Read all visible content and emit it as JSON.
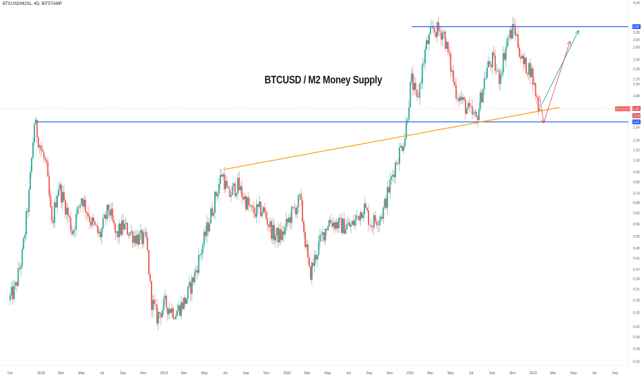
{
  "header": {
    "symbol_line": "BTCUSD/M2SL, 4D, BITSTAMP"
  },
  "chart_data": {
    "type": "candlestick",
    "title": "BTCUSD / M2 Money Supply",
    "scale": "log",
    "ylim": [
      0.165,
      4.2
    ],
    "y_ticks": [
      "4.20",
      "3.40",
      "3.20",
      "3.00",
      "2.80",
      "2.50",
      "2.30",
      "2.10",
      "2.00",
      "1.80",
      "1.60",
      "1.52",
      "1.42",
      "1.35",
      "1.20",
      "1.10",
      "1.00",
      "0.90",
      "0.82",
      "0.74",
      "0.68",
      "0.62",
      "0.56",
      "0.50",
      "0.45",
      "0.41",
      "0.37",
      "0.34",
      "0.31",
      "0.28",
      "0.25",
      "0.22",
      "0.20",
      "0.18",
      "0.16"
    ],
    "x_ticks": [
      "Oct",
      "2018",
      "Mar",
      "May",
      "Jul",
      "Sep",
      "Nov",
      "2019",
      "Mar",
      "May",
      "Jul",
      "Sep",
      "Nov",
      "2020",
      "Mar",
      "May",
      "Jul",
      "Sep",
      "Nov",
      "2021",
      "Mar",
      "May",
      "Jul",
      "Sep",
      "Nov",
      "2022",
      "Mar",
      "May",
      "Jul",
      "Sep"
    ],
    "price_path": [
      [
        "2017-10-01",
        0.28
      ],
      [
        "2017-10-20",
        0.31
      ],
      [
        "2017-11-10",
        0.42
      ],
      [
        "2017-12-01",
        0.75
      ],
      [
        "2017-12-16",
        1.42
      ],
      [
        "2018-01-05",
        1.1
      ],
      [
        "2018-01-20",
        0.95
      ],
      [
        "2018-02-06",
        0.55
      ],
      [
        "2018-02-25",
        0.8
      ],
      [
        "2018-03-20",
        0.65
      ],
      [
        "2018-04-08",
        0.52
      ],
      [
        "2018-05-05",
        0.72
      ],
      [
        "2018-06-01",
        0.58
      ],
      [
        "2018-06-28",
        0.5
      ],
      [
        "2018-07-25",
        0.65
      ],
      [
        "2018-08-15",
        0.5
      ],
      [
        "2018-09-05",
        0.55
      ],
      [
        "2018-10-10",
        0.5
      ],
      [
        "2018-11-14",
        0.48
      ],
      [
        "2018-11-28",
        0.28
      ],
      [
        "2018-12-15",
        0.24
      ],
      [
        "2019-01-08",
        0.27
      ],
      [
        "2019-02-08",
        0.25
      ],
      [
        "2019-03-10",
        0.28
      ],
      [
        "2019-04-05",
        0.35
      ],
      [
        "2019-05-15",
        0.55
      ],
      [
        "2019-06-26",
        0.9
      ],
      [
        "2019-07-15",
        0.72
      ],
      [
        "2019-08-10",
        0.8
      ],
      [
        "2019-09-24",
        0.62
      ],
      [
        "2019-10-25",
        0.64
      ],
      [
        "2019-11-25",
        0.51
      ],
      [
        "2019-12-20",
        0.5
      ],
      [
        "2020-01-15",
        0.6
      ],
      [
        "2020-02-13",
        0.7
      ],
      [
        "2020-03-12",
        0.35
      ],
      [
        "2020-04-08",
        0.46
      ],
      [
        "2020-05-08",
        0.58
      ],
      [
        "2020-06-15",
        0.55
      ],
      [
        "2020-07-15",
        0.55
      ],
      [
        "2020-08-20",
        0.66
      ],
      [
        "2020-09-10",
        0.56
      ],
      [
        "2020-10-15",
        0.62
      ],
      [
        "2020-11-20",
        0.95
      ],
      [
        "2020-12-20",
        1.25
      ],
      [
        "2021-01-08",
        2.1
      ],
      [
        "2021-01-25",
        1.7
      ],
      [
        "2021-02-20",
        2.8
      ],
      [
        "2021-03-13",
        3.3
      ],
      [
        "2021-04-14",
        3.2
      ],
      [
        "2021-05-19",
        1.9
      ],
      [
        "2021-06-21",
        1.6
      ],
      [
        "2021-07-20",
        1.45
      ],
      [
        "2021-08-20",
        2.3
      ],
      [
        "2021-09-07",
        2.5
      ],
      [
        "2021-09-25",
        2.1
      ],
      [
        "2021-10-20",
        3.0
      ],
      [
        "2021-11-10",
        3.35
      ],
      [
        "2021-12-05",
        2.4
      ],
      [
        "2021-12-28",
        2.3
      ],
      [
        "2022-01-22",
        1.6
      ]
    ],
    "annotations": {
      "resistance_level": 3.38,
      "support_level": 1.42,
      "trendline": [
        [
          "2019-06-26",
          0.92
        ],
        [
          "2022-03-20",
          1.62
        ]
      ],
      "scenario_up": [
        [
          "2022-01-28",
          1.68
        ],
        [
          "2022-05-15",
          3.25
        ]
      ],
      "scenario_down_up": [
        [
          "2022-01-20",
          1.8
        ],
        [
          "2022-02-01",
          1.41
        ],
        [
          "2022-04-20",
          2.95
        ]
      ]
    },
    "price_tags": [
      {
        "label": "3.38",
        "value": 3.38,
        "color": "#2962ff"
      },
      {
        "label": "BTCUSD/M2SL",
        "value": 1.6,
        "color": "#ef5350"
      },
      {
        "label": "1.60",
        "value": 1.6,
        "color": "#ef5350"
      },
      {
        "label": "10:00",
        "value": 1.55,
        "color": "#ef5350"
      },
      {
        "label": "1.42",
        "value": 1.42,
        "color": "#2962ff"
      }
    ],
    "grid": false,
    "colors": {
      "up": "#26a69a",
      "down": "#ef5350",
      "level": "#2962ff",
      "trend": "#ff9800"
    }
  }
}
